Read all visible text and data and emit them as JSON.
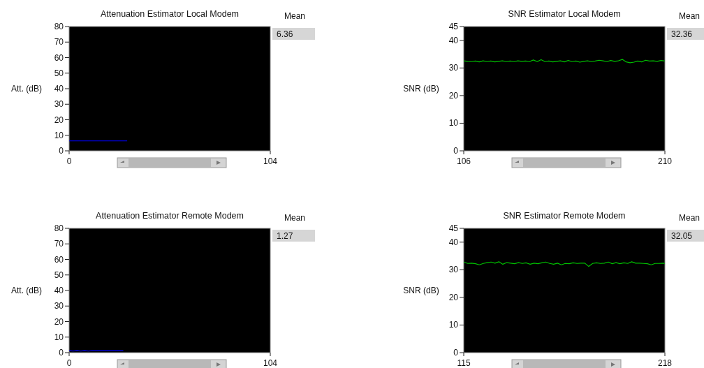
{
  "chart_data": [
    {
      "type": "line",
      "title": "Attenuation Estimator Local Modem",
      "ylabel": "Att. (dB)",
      "xlim": [
        0,
        104
      ],
      "xticks": [
        0,
        104
      ],
      "ylim": [
        0,
        80
      ],
      "yticks": [
        0,
        10,
        20,
        30,
        40,
        50,
        60,
        70,
        80
      ],
      "grid": false,
      "annotations": [
        "Mean",
        "6.36"
      ],
      "series": [
        {
          "color": "#0000ff",
          "x": [
            0,
            30
          ],
          "values": [
            6.4,
            6.4
          ]
        }
      ]
    },
    {
      "type": "line",
      "title": "SNR Estimator Local Modem",
      "ylabel": "SNR (dB)",
      "xlim": [
        106,
        210
      ],
      "xticks": [
        106,
        210
      ],
      "ylim": [
        0,
        45
      ],
      "yticks": [
        0,
        10,
        20,
        30,
        40,
        45
      ],
      "grid": false,
      "annotations": [
        "Mean",
        "32.36"
      ],
      "series": [
        {
          "color": "#00c000",
          "x": [
            106,
            108,
            110,
            112,
            114,
            116,
            118,
            120,
            122,
            124,
            126,
            128,
            130,
            132,
            134,
            136,
            138,
            140,
            142,
            144,
            146,
            148,
            150,
            152,
            154,
            156,
            158,
            160,
            162,
            164,
            166,
            168,
            170,
            172,
            174,
            176,
            178,
            180,
            182,
            184,
            186,
            188,
            190,
            192,
            194,
            196,
            198,
            200,
            202,
            204,
            206,
            208,
            210
          ],
          "values": [
            32.6,
            32.4,
            32.3,
            32.5,
            32.2,
            32.6,
            32.3,
            32.5,
            32.2,
            32.4,
            32.6,
            32.3,
            32.5,
            32.3,
            32.6,
            32.4,
            32.5,
            32.3,
            32.9,
            32.3,
            33.0,
            32.3,
            32.5,
            32.2,
            32.4,
            32.6,
            32.2,
            32.7,
            32.3,
            32.5,
            32.1,
            32.4,
            32.6,
            32.3,
            32.5,
            32.8,
            32.6,
            32.3,
            32.7,
            32.4,
            32.6,
            33.1,
            32.2,
            31.9,
            32.1,
            32.5,
            32.2,
            32.8,
            32.5,
            32.6,
            32.4,
            32.7,
            32.5
          ]
        }
      ]
    },
    {
      "type": "line",
      "title": "Attenuation Estimator Remote Modem",
      "ylabel": "Att. (dB)",
      "xlim": [
        0,
        104
      ],
      "xticks": [
        0,
        104
      ],
      "ylim": [
        0,
        80
      ],
      "yticks": [
        0,
        10,
        20,
        30,
        40,
        50,
        60,
        70,
        80
      ],
      "grid": false,
      "annotations": [
        "Mean",
        "1.27"
      ],
      "series": [
        {
          "color": "#0000ff",
          "x": [
            0,
            2,
            4,
            6,
            8,
            10,
            12,
            14,
            16,
            18,
            20,
            22,
            24,
            26,
            28
          ],
          "values": [
            1.3,
            1.0,
            1.3,
            1.0,
            1.3,
            1.0,
            1.3,
            1.3,
            1.3,
            1.3,
            1.3,
            1.3,
            1.3,
            1.3,
            1.3
          ]
        }
      ]
    },
    {
      "type": "line",
      "title": "SNR Estimator Remote Modem",
      "ylabel": "SNR (dB)",
      "xlim": [
        115,
        218
      ],
      "xticks": [
        115,
        218
      ],
      "ylim": [
        0,
        45
      ],
      "yticks": [
        0,
        10,
        20,
        30,
        40,
        45
      ],
      "grid": false,
      "annotations": [
        "Mean",
        "32.05"
      ],
      "series": [
        {
          "color": "#00c000",
          "x": [
            115,
            117,
            119,
            121,
            123,
            125,
            127,
            129,
            131,
            133,
            135,
            137,
            139,
            141,
            143,
            145,
            147,
            149,
            151,
            153,
            155,
            157,
            159,
            161,
            163,
            165,
            167,
            169,
            171,
            173,
            175,
            177,
            179,
            181,
            183,
            185,
            187,
            189,
            191,
            193,
            195,
            197,
            199,
            201,
            203,
            205,
            207,
            209,
            211,
            213,
            215,
            217,
            218
          ],
          "values": [
            32.8,
            32.3,
            32.4,
            32.2,
            31.8,
            32.3,
            32.6,
            32.8,
            32.4,
            32.9,
            32.0,
            32.6,
            32.4,
            32.2,
            32.6,
            32.3,
            32.5,
            32.0,
            32.4,
            32.2,
            32.5,
            32.8,
            32.3,
            32.0,
            32.4,
            31.8,
            32.3,
            32.2,
            32.5,
            32.3,
            32.4,
            32.4,
            31.2,
            32.3,
            32.5,
            32.3,
            32.4,
            32.8,
            32.2,
            32.6,
            32.2,
            32.5,
            32.3,
            32.9,
            32.4,
            32.4,
            32.3,
            32.2,
            31.8,
            32.3,
            32.3,
            32.4,
            32.3
          ]
        }
      ]
    }
  ]
}
